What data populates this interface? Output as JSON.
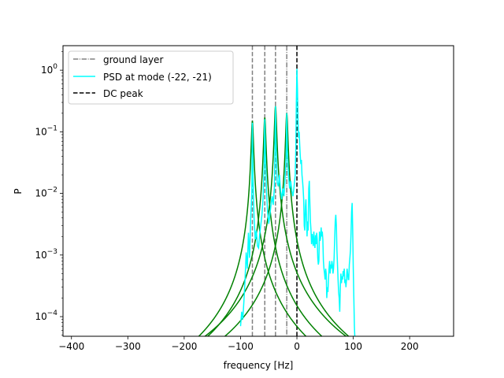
{
  "chart_data": {
    "type": "line",
    "title": "",
    "xlabel": "frequency [Hz]",
    "ylabel": "P",
    "xlim": [
      -415,
      278
    ],
    "ylim": [
      4.8e-05,
      2.5
    ],
    "yscale": "log",
    "grid": false,
    "legend_position": "top-left",
    "x_ticks": [
      -400,
      -300,
      -200,
      -100,
      0,
      100,
      200
    ],
    "y_ticks": [
      {
        "value": 0.0001,
        "base": "10",
        "exp": "−4"
      },
      {
        "value": 0.001,
        "base": "10",
        "exp": "−3"
      },
      {
        "value": 0.01,
        "base": "10",
        "exp": "−2"
      },
      {
        "value": 0.1,
        "base": "10",
        "exp": "−1"
      },
      {
        "value": 1,
        "base": "10",
        "exp": "0"
      }
    ],
    "legend": [
      {
        "label": "ground layer",
        "color": "#808080",
        "style": "dashdot"
      },
      {
        "label": "PSD at mode (-22, -21)",
        "color": "#00ffff",
        "style": "solid"
      },
      {
        "label": "DC peak",
        "color": "#000000",
        "style": "dashed"
      }
    ],
    "vertical_lines": [
      {
        "x": -79,
        "color": "#808080",
        "style": "dashed"
      },
      {
        "x": -57,
        "color": "#808080",
        "style": "dashed"
      },
      {
        "x": -38,
        "color": "#808080",
        "style": "dashed"
      },
      {
        "x": -18,
        "color": "#808080",
        "style": "dashdot"
      },
      {
        "x": 0,
        "color": "#000000",
        "style": "dashed"
      }
    ],
    "psd_series": {
      "color": "#00ffff",
      "points": [
        [
          -100,
          7e-05
        ],
        [
          -98,
          0.00012
        ],
        [
          -96,
          9e-05
        ],
        [
          -94,
          0.00018
        ],
        [
          -92,
          0.0004
        ],
        [
          -90,
          0.0011
        ],
        [
          -88,
          0.0006
        ],
        [
          -86,
          0.0023
        ],
        [
          -84,
          0.0009
        ],
        [
          -82,
          0.004
        ],
        [
          -80,
          0.01
        ],
        [
          -79,
          0.14
        ],
        [
          -78,
          0.02
        ],
        [
          -76,
          0.004
        ],
        [
          -74,
          0.0018
        ],
        [
          -72,
          0.0025
        ],
        [
          -70,
          0.0014
        ],
        [
          -68,
          0.0013
        ],
        [
          -66,
          0.0022
        ],
        [
          -64,
          0.0031
        ],
        [
          -62,
          0.0045
        ],
        [
          -60,
          0.0085
        ],
        [
          -58,
          0.03
        ],
        [
          -57,
          0.16
        ],
        [
          -56,
          0.04
        ],
        [
          -54,
          0.011
        ],
        [
          -52,
          0.005
        ],
        [
          -50,
          0.0032
        ],
        [
          -48,
          0.0045
        ],
        [
          -46,
          0.0065
        ],
        [
          -44,
          0.009
        ],
        [
          -42,
          0.0065
        ],
        [
          -40,
          0.0125
        ],
        [
          -39,
          0.05
        ],
        [
          -38,
          0.26
        ],
        [
          -37,
          0.06
        ],
        [
          -35,
          0.015
        ],
        [
          -33,
          0.013
        ],
        [
          -31,
          0.02
        ],
        [
          -29,
          0.011
        ],
        [
          -27,
          0.008
        ],
        [
          -25,
          0.012
        ],
        [
          -23,
          0.009
        ],
        [
          -21,
          0.017
        ],
        [
          -19,
          0.04
        ],
        [
          -18,
          0.2
        ],
        [
          -17,
          0.05
        ],
        [
          -15,
          0.02
        ],
        [
          -13,
          0.012
        ],
        [
          -11,
          0.016
        ],
        [
          -9,
          0.011
        ],
        [
          -7,
          0.009
        ],
        [
          -5,
          0.013
        ],
        [
          -3,
          0.02
        ],
        [
          -2,
          0.05
        ],
        [
          -1,
          0.3
        ],
        [
          0,
          1.05
        ],
        [
          1,
          0.5
        ],
        [
          2,
          0.15
        ],
        [
          3,
          0.08
        ],
        [
          4,
          0.1
        ],
        [
          5,
          0.06
        ],
        [
          6,
          0.04
        ],
        [
          7,
          0.03
        ],
        [
          8,
          0.035
        ],
        [
          9,
          0.02
        ],
        [
          10,
          0.016
        ],
        [
          11,
          0.012
        ],
        [
          12,
          0.008
        ],
        [
          13,
          0.003
        ],
        [
          14,
          0.0025
        ],
        [
          15,
          0.006
        ],
        [
          16,
          0.008
        ],
        [
          17,
          0.004
        ],
        [
          18,
          0.002
        ],
        [
          19,
          0.0035
        ],
        [
          20,
          0.0025
        ],
        [
          21,
          0.012
        ],
        [
          22,
          0.016
        ],
        [
          23,
          0.007
        ],
        [
          24,
          0.0035
        ],
        [
          25,
          0.0025
        ],
        [
          26,
          0.0015
        ],
        [
          27,
          0.0022
        ],
        [
          28,
          0.0018
        ],
        [
          29,
          0.0014
        ],
        [
          30,
          0.0024
        ],
        [
          31,
          0.0016
        ],
        [
          32,
          0.0013
        ],
        [
          33,
          0.0021
        ],
        [
          34,
          0.0015
        ],
        [
          35,
          0.0023
        ],
        [
          36,
          0.0018
        ],
        [
          37,
          0.0009
        ],
        [
          38,
          0.0007
        ],
        [
          39,
          0.0008
        ],
        [
          40,
          0.0024
        ],
        [
          41,
          0.0017
        ],
        [
          42,
          0.0019
        ],
        [
          43,
          0.0028
        ],
        [
          44,
          0.002
        ],
        [
          45,
          0.0024
        ],
        [
          46,
          0.0018
        ],
        [
          47,
          0.0008
        ],
        [
          48,
          0.0006
        ],
        [
          49,
          0.0005
        ],
        [
          50,
          0.0004
        ],
        [
          51,
          0.0006
        ],
        [
          52,
          0.0005
        ],
        [
          53,
          0.0002
        ],
        [
          54,
          0.0003
        ],
        [
          55,
          0.00025
        ],
        [
          56,
          0.0004
        ],
        [
          57,
          0.0006
        ],
        [
          58,
          0.0008
        ],
        [
          59,
          0.0005
        ],
        [
          60,
          0.0007
        ],
        [
          61,
          0.0006
        ],
        [
          62,
          0.0008
        ],
        [
          63,
          0.0007
        ],
        [
          64,
          0.0005
        ],
        [
          65,
          0.0006
        ],
        [
          66,
          0.0009
        ],
        [
          67,
          0.0018
        ],
        [
          68,
          0.0035
        ],
        [
          69,
          0.0045
        ],
        [
          70,
          0.003
        ],
        [
          71,
          0.0012
        ],
        [
          72,
          0.0007
        ],
        [
          73,
          0.0004
        ],
        [
          74,
          0.00025
        ],
        [
          75,
          0.0002
        ],
        [
          76,
          0.00012
        ],
        [
          77,
          0.0003
        ],
        [
          78,
          0.0005
        ],
        [
          79,
          0.00035
        ],
        [
          80,
          0.00045
        ],
        [
          81,
          0.0004
        ],
        [
          82,
          0.00055
        ],
        [
          83,
          0.00045
        ],
        [
          84,
          0.0006
        ],
        [
          85,
          0.00035
        ],
        [
          86,
          0.0004
        ],
        [
          87,
          0.0003
        ],
        [
          88,
          0.0004
        ],
        [
          89,
          0.0006
        ],
        [
          90,
          0.0005
        ],
        [
          91,
          0.0004
        ],
        [
          92,
          0.0004
        ],
        [
          93,
          0.0007
        ],
        [
          94,
          0.0009
        ],
        [
          95,
          0.0012
        ],
        [
          96,
          0.0022
        ],
        [
          97,
          0.005
        ],
        [
          98,
          0.007
        ],
        [
          99,
          0.0025
        ],
        [
          100,
          0.0006
        ],
        [
          101,
          0.0002
        ],
        [
          102,
          7e-05
        ],
        [
          103,
          4e-05
        ]
      ]
    },
    "peak_series": {
      "color": "#008000",
      "peaks": [
        {
          "center": -79,
          "amplitude": 0.15,
          "width": 1.7
        },
        {
          "center": -57,
          "amplitude": 0.17,
          "width": 1.7
        },
        {
          "center": -38,
          "amplitude": 0.26,
          "width": 1.7
        },
        {
          "center": -18,
          "amplitude": 0.2,
          "width": 1.7
        }
      ]
    }
  }
}
